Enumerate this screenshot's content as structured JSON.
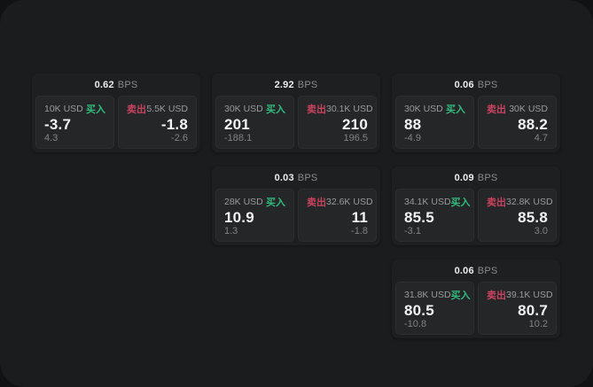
{
  "window": {
    "background": "#111213",
    "surface": "#1b1c1e"
  },
  "labels": {
    "bps_unit": "BPS",
    "buy": "买入",
    "sell": "卖出"
  },
  "colors": {
    "buy_green": "#31bb7e",
    "sell_red": "#c8435f",
    "card_bg": "#1e1f21",
    "tile_bg": "#252628",
    "text_primary": "#f3f3f3",
    "text_secondary": "#9b9b9b"
  },
  "cards": [
    {
      "bps": "0.62",
      "buy": {
        "notional": "10K USD",
        "price": "-3.7",
        "delta": "4.3"
      },
      "sell": {
        "notional": "5.5K USD",
        "price": "-1.8",
        "delta": "-2.6"
      }
    },
    {
      "bps": "2.92",
      "buy": {
        "notional": "30K USD",
        "price": "201",
        "delta": "-188.1"
      },
      "sell": {
        "notional": "30.1K USD",
        "price": "210",
        "delta": "196.5"
      }
    },
    {
      "bps": "0.03",
      "buy": {
        "notional": "28K USD",
        "price": "10.9",
        "delta": "1.3"
      },
      "sell": {
        "notional": "32.6K USD",
        "price": "11",
        "delta": "-1.8"
      }
    },
    {
      "bps": "0.06",
      "buy": {
        "notional": "30K USD",
        "price": "88",
        "delta": "-4.9"
      },
      "sell": {
        "notional": "30K USD",
        "price": "88.2",
        "delta": "4.7"
      }
    },
    {
      "bps": "0.09",
      "buy": {
        "notional": "34.1K USD",
        "price": "85.5",
        "delta": "-3.1"
      },
      "sell": {
        "notional": "32.8K USD",
        "price": "85.8",
        "delta": "3.0"
      }
    },
    {
      "bps": "0.06",
      "buy": {
        "notional": "31.8K USD",
        "price": "80.5",
        "delta": "-10.8"
      },
      "sell": {
        "notional": "39.1K USD",
        "price": "80.7",
        "delta": "10.2"
      }
    }
  ]
}
